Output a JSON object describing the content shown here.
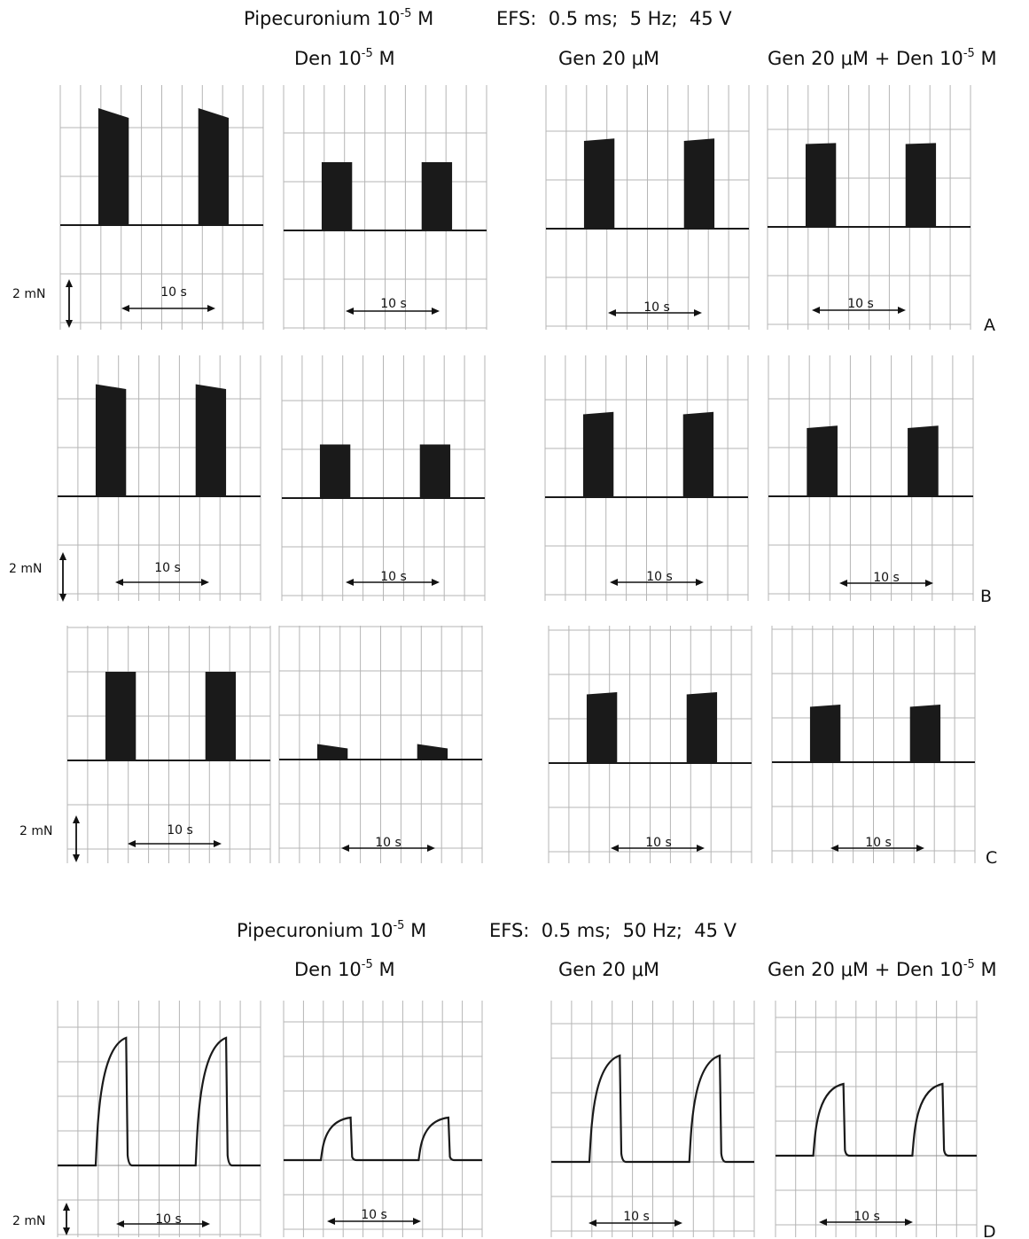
{
  "headers": [
    {
      "title": {
        "prefix": "Pipecuronium 10",
        "sup": "-5",
        "suffix": " M"
      },
      "efs": "EFS:  0.5 ms;  5 Hz;  45 V",
      "columns": [
        {
          "prefix": "Den 10",
          "sup": "-5",
          "suffix": " M"
        },
        {
          "prefix": "Gen 20 μM",
          "sup": "",
          "suffix": ""
        },
        {
          "prefix": "Gen 20 μM + Den 10",
          "sup": "-5",
          "suffix": " M"
        }
      ]
    },
    {
      "title": {
        "prefix": "Pipecuronium 10",
        "sup": "-5",
        "suffix": " M"
      },
      "efs": "EFS:  0.5 ms;  50 Hz;  45 V",
      "columns": [
        {
          "prefix": "Den 10",
          "sup": "-5",
          "suffix": " M"
        },
        {
          "prefix": "Gen 20 μM",
          "sup": "",
          "suffix": ""
        },
        {
          "prefix": "Gen 20 μM + Den 10",
          "sup": "-5",
          "suffix": " M"
        }
      ]
    }
  ],
  "scale_bar": {
    "force_label": "2 mN",
    "time_label": "10 s"
  },
  "colors": {
    "trace": "#1a1a1a",
    "grid": "#b5b5b5",
    "grid_major": "#8f8f8f"
  },
  "chart_data": [
    {
      "type": "line",
      "row_label": "A",
      "stimulation": "5 Hz",
      "unit_y": "mN",
      "unit_x": "s",
      "ylim": [
        -2,
        2.6
      ],
      "xlim": [
        0,
        20
      ],
      "panels": [
        {
          "condition": "Pipecuronium",
          "baseline": 0,
          "peak": [
            2.4,
            2.4
          ],
          "peak_end": [
            2.2,
            2.2
          ]
        },
        {
          "condition": "Den",
          "baseline": 0,
          "peak": [
            1.4,
            1.4
          ],
          "peak_end": [
            1.4,
            1.4
          ]
        },
        {
          "condition": "Gen",
          "baseline": 0,
          "peak": [
            1.8,
            1.8
          ],
          "peak_end": [
            1.85,
            1.85
          ]
        },
        {
          "condition": "Gen + Den",
          "baseline": 0,
          "peak": [
            1.7,
            1.7
          ],
          "peak_end": [
            1.72,
            1.72
          ]
        }
      ]
    },
    {
      "type": "line",
      "row_label": "B",
      "stimulation": "5 Hz",
      "unit_y": "mN",
      "unit_x": "s",
      "ylim": [
        -2,
        2.6
      ],
      "xlim": [
        0,
        20
      ],
      "panels": [
        {
          "condition": "Pipecuronium",
          "baseline": 0,
          "peak": [
            2.3,
            2.3
          ],
          "peak_end": [
            2.2,
            2.2
          ]
        },
        {
          "condition": "Den",
          "baseline": 0,
          "peak": [
            1.1,
            1.1
          ],
          "peak_end": [
            1.1,
            1.1
          ]
        },
        {
          "condition": "Gen",
          "baseline": 0,
          "peak": [
            1.7,
            1.7
          ],
          "peak_end": [
            1.75,
            1.75
          ]
        },
        {
          "condition": "Gen + Den",
          "baseline": 0,
          "peak": [
            1.4,
            1.4
          ],
          "peak_end": [
            1.45,
            1.45
          ]
        }
      ]
    },
    {
      "type": "line",
      "row_label": "C",
      "stimulation": "5 Hz",
      "unit_y": "mN",
      "unit_x": "s",
      "ylim": [
        -2,
        2.6
      ],
      "xlim": [
        0,
        20
      ],
      "panels": [
        {
          "condition": "Pipecuronium",
          "baseline": 0,
          "peak": [
            2.0,
            2.0
          ],
          "peak_end": [
            2.0,
            2.0
          ]
        },
        {
          "condition": "Den",
          "baseline": 0,
          "peak": [
            0.35,
            0.35
          ],
          "peak_end": [
            0.25,
            0.25
          ]
        },
        {
          "condition": "Gen",
          "baseline": 0,
          "peak": [
            1.55,
            1.55
          ],
          "peak_end": [
            1.6,
            1.6
          ]
        },
        {
          "condition": "Gen + Den",
          "baseline": 0,
          "peak": [
            1.25,
            1.25
          ],
          "peak_end": [
            1.3,
            1.3
          ]
        }
      ]
    },
    {
      "type": "line",
      "row_label": "D",
      "stimulation": "50 Hz",
      "unit_y": "mN",
      "unit_x": "s",
      "ylim": [
        -1.8,
        2.6
      ],
      "xlim": [
        0,
        20
      ],
      "panels": [
        {
          "condition": "Pipecuronium",
          "baseline": 0,
          "peak": [
            2.4,
            2.4
          ]
        },
        {
          "condition": "Den",
          "baseline": 0,
          "peak": [
            0.8,
            0.8
          ]
        },
        {
          "condition": "Gen",
          "baseline": 0,
          "peak": [
            2.0,
            2.0
          ]
        },
        {
          "condition": "Gen + Den",
          "baseline": 0,
          "peak": [
            1.35,
            1.35
          ]
        }
      ]
    }
  ]
}
